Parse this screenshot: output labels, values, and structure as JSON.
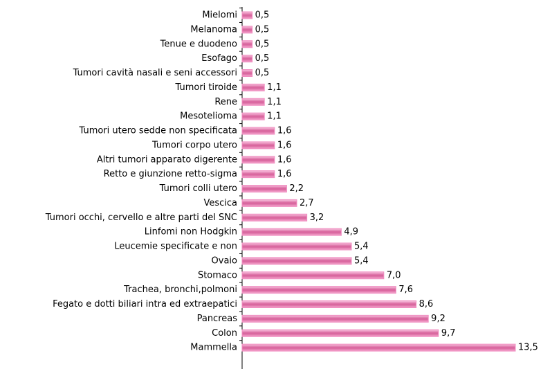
{
  "chart_data": {
    "type": "bar",
    "orientation": "horizontal",
    "color": "#f08cc0",
    "categories": [
      "Mielomi",
      "Melanoma",
      "Tenue e duodeno",
      "Esofago",
      "Tumori cavità nasali e seni accessori",
      "Tumori tiroide",
      "Rene",
      "Mesotelioma",
      "Tumori utero sedde non specificata",
      "Tumori corpo utero",
      "Altri tumori apparato digerente",
      "Retto e giunzione retto-sigma",
      "Tumori colli utero",
      "Vescica",
      "Tumori occhi, cervello e altre parti del SNC",
      "Linfomi non Hodgkin",
      "Leucemie specificate e non",
      "Ovaio",
      "Stomaco",
      "Trachea, bronchi,polmoni",
      "Fegato e dotti biliari intra ed extraepatici",
      "Pancreas",
      "Colon",
      "Mammella"
    ],
    "values": [
      0.5,
      0.5,
      0.5,
      0.5,
      0.5,
      1.1,
      1.1,
      1.1,
      1.6,
      1.6,
      1.6,
      1.6,
      2.2,
      2.7,
      3.2,
      4.9,
      5.4,
      5.4,
      7.0,
      7.6,
      8.6,
      9.2,
      9.7,
      13.5
    ],
    "value_labels": [
      "0,5",
      "0,5",
      "0,5",
      "0,5",
      "0,5",
      "1,1",
      "1,1",
      "1,1",
      "1,6",
      "1,6",
      "1,6",
      "1,6",
      "2,2",
      "2,7",
      "3,2",
      "4,9",
      "5,4",
      "5,4",
      "7,0",
      "7,6",
      "8,6",
      "9,2",
      "9,7",
      "13,5"
    ]
  }
}
